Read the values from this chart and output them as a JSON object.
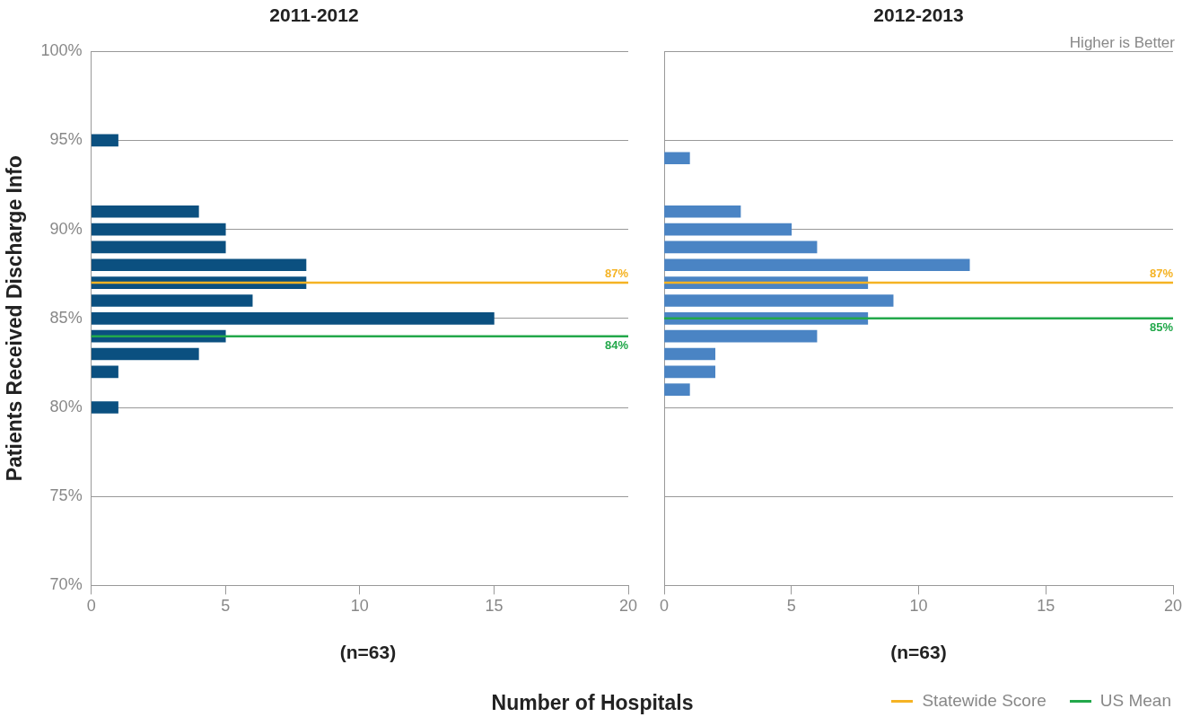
{
  "chart_data": [
    {
      "type": "bar",
      "orientation": "horizontal",
      "title": "2011-2012",
      "ylabel": "Patients Received Discharge Info",
      "xlabel": "Number of Hospitals",
      "x": [
        95,
        91,
        90,
        89,
        88,
        87,
        86,
        85,
        84,
        83,
        82,
        80
      ],
      "series": [
        {
          "color": "#0b5080",
          "values": [
            1,
            4,
            5,
            5,
            8,
            8,
            6,
            15,
            5,
            4,
            1,
            1
          ]
        }
      ],
      "xlim": [
        0,
        20
      ],
      "xticks": [
        0,
        5,
        10,
        15,
        20
      ],
      "ylim": [
        70,
        100
      ],
      "yticks": [
        {
          "value": 70,
          "label": "70%"
        },
        {
          "value": 75,
          "label": "75%"
        },
        {
          "value": 80,
          "label": "80%"
        },
        {
          "value": 85,
          "label": "85%"
        },
        {
          "value": 90,
          "label": "90%"
        },
        {
          "value": 95,
          "label": "95%"
        },
        {
          "value": 100,
          "label": "100%"
        }
      ],
      "grid": "y",
      "ref_lines": [
        {
          "axis": "y",
          "value": 87,
          "label": "87%",
          "color": "#f5b324"
        },
        {
          "axis": "y",
          "value": 84,
          "label": "84%",
          "color": "#23a84b"
        }
      ],
      "annotations": [
        "(n=63)"
      ]
    },
    {
      "type": "bar",
      "orientation": "horizontal",
      "title": "2012-2013",
      "x": [
        94,
        91,
        90,
        89,
        88,
        87,
        86,
        85,
        84,
        83,
        82,
        81
      ],
      "series": [
        {
          "color": "#4a84c4",
          "values": [
            1,
            3,
            5,
            6,
            12,
            8,
            9,
            8,
            6,
            2,
            2,
            1
          ]
        }
      ],
      "xlim": [
        0,
        20
      ],
      "xticks": [
        0,
        5,
        10,
        15,
        20
      ],
      "ylim": [
        70,
        100
      ],
      "yticks": [
        {
          "value": 70,
          "label": null
        },
        {
          "value": 75,
          "label": null
        },
        {
          "value": 80,
          "label": null
        },
        {
          "value": 85,
          "label": null
        },
        {
          "value": 90,
          "label": null
        },
        {
          "value": 95,
          "label": null
        },
        {
          "value": 100,
          "label": null
        }
      ],
      "grid": "y",
      "tick_labels": "x",
      "ref_lines": [
        {
          "axis": "y",
          "value": 87,
          "label": "87%",
          "color": "#f5b324"
        },
        {
          "axis": "y",
          "value": 85,
          "label": "85%",
          "color": "#23a84b"
        }
      ],
      "annotations": [
        "(n=63)",
        "Higher is Better",
        "Statewide Score",
        "US Mean"
      ]
    }
  ]
}
